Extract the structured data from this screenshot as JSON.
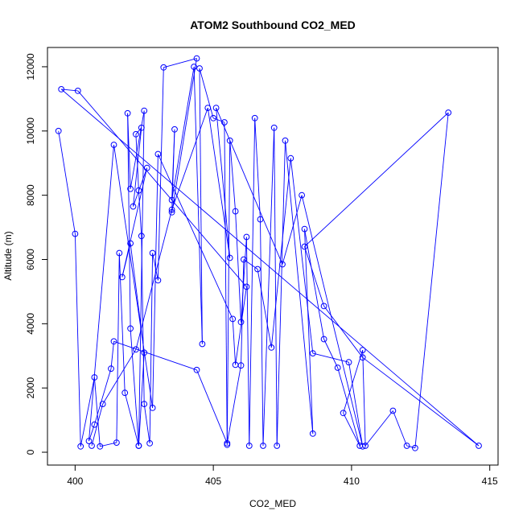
{
  "chart_data": {
    "type": "line",
    "title": "ATOM2 Southbound CO2_MED",
    "xlabel": "CO2_MED",
    "ylabel": "Altitude (m)",
    "xlim": [
      399.0,
      415.3
    ],
    "ylim": [
      -400,
      12600
    ],
    "x_ticks": [
      400,
      405,
      410,
      415
    ],
    "y_ticks": [
      0,
      2000,
      4000,
      6000,
      8000,
      10000,
      12000
    ],
    "grid": false,
    "legend": "none",
    "series_color": "#0000ff",
    "marker": "open-circle",
    "series": [
      {
        "points": [
          [
            399.4,
            10000
          ],
          [
            400.0,
            6800
          ],
          [
            400.2,
            180
          ],
          [
            400.7,
            2330
          ],
          [
            400.9,
            180
          ],
          [
            401.5,
            300
          ],
          [
            401.6,
            6200
          ],
          [
            401.8,
            1850
          ],
          [
            402.3,
            200
          ],
          [
            402.5,
            10630
          ],
          [
            402.0,
            8200
          ],
          [
            401.9,
            10550
          ],
          [
            402.0,
            3850
          ],
          [
            402.3,
            200
          ],
          [
            402.5,
            3100
          ],
          [
            402.0,
            6500
          ],
          [
            401.7,
            5450
          ],
          [
            402.6,
            8850
          ],
          [
            402.1,
            7650
          ],
          [
            402.4,
            10100
          ],
          [
            402.2,
            9900
          ],
          [
            402.3,
            8150
          ],
          [
            402.4,
            6730
          ],
          [
            402.5,
            1500
          ],
          [
            402.7,
            280
          ],
          [
            402.8,
            6200
          ],
          [
            403.0,
            5350
          ],
          [
            403.2,
            11980
          ],
          [
            404.4,
            12260
          ],
          [
            403.5,
            7470
          ],
          [
            403.6,
            10050
          ],
          [
            403.5,
            7850
          ],
          [
            404.3,
            12000
          ],
          [
            404.6,
            3370
          ],
          [
            404.5,
            11950
          ],
          [
            405.0,
            10400
          ],
          [
            405.4,
            10270
          ],
          [
            405.5,
            230
          ],
          [
            405.6,
            9700
          ],
          [
            405.8,
            7500
          ],
          [
            406.0,
            4050
          ],
          [
            406.2,
            6700
          ],
          [
            406.3,
            200
          ],
          [
            406.5,
            10400
          ],
          [
            406.7,
            7250
          ],
          [
            406.8,
            200
          ],
          [
            407.2,
            10100
          ],
          [
            407.3,
            200
          ],
          [
            407.6,
            9700
          ],
          [
            408.6,
            580
          ],
          [
            408.3,
            6950
          ],
          [
            409.0,
            3520
          ],
          [
            409.5,
            2630
          ],
          [
            410.3,
            200
          ],
          [
            409.7,
            1220
          ],
          [
            410.4,
            3180
          ],
          [
            410.5,
            200
          ],
          [
            411.5,
            1290
          ],
          [
            412.0,
            200
          ],
          [
            412.3,
            130
          ],
          [
            413.5,
            10570
          ],
          [
            408.3,
            6400
          ],
          [
            409.0,
            4550
          ],
          [
            410.4,
            2950
          ],
          [
            414.6,
            200
          ],
          [
            399.5,
            11300
          ],
          [
            400.1,
            11250
          ],
          [
            406.2,
            5150
          ],
          [
            405.8,
            2720
          ],
          [
            405.7,
            4150
          ],
          [
            403.0,
            9280
          ],
          [
            402.8,
            1380
          ],
          [
            401.4,
            9570
          ],
          [
            400.5,
            350
          ],
          [
            400.7,
            860
          ],
          [
            401.3,
            2600
          ],
          [
            401.4,
            3450
          ],
          [
            404.4,
            2560
          ],
          [
            405.5,
            280
          ],
          [
            406.0,
            2700
          ],
          [
            406.1,
            6000
          ],
          [
            406.6,
            5700
          ],
          [
            407.1,
            3260
          ],
          [
            407.8,
            9150
          ],
          [
            408.6,
            3080
          ],
          [
            409.9,
            2800
          ],
          [
            410.4,
            180
          ],
          [
            408.2,
            8000
          ],
          [
            407.5,
            5850
          ],
          [
            405.1,
            10720
          ],
          [
            405.6,
            6050
          ],
          [
            404.8,
            10720
          ],
          [
            403.5,
            7550
          ],
          [
            402.2,
            3200
          ],
          [
            401.0,
            1500
          ],
          [
            400.6,
            200
          ]
        ]
      }
    ]
  }
}
